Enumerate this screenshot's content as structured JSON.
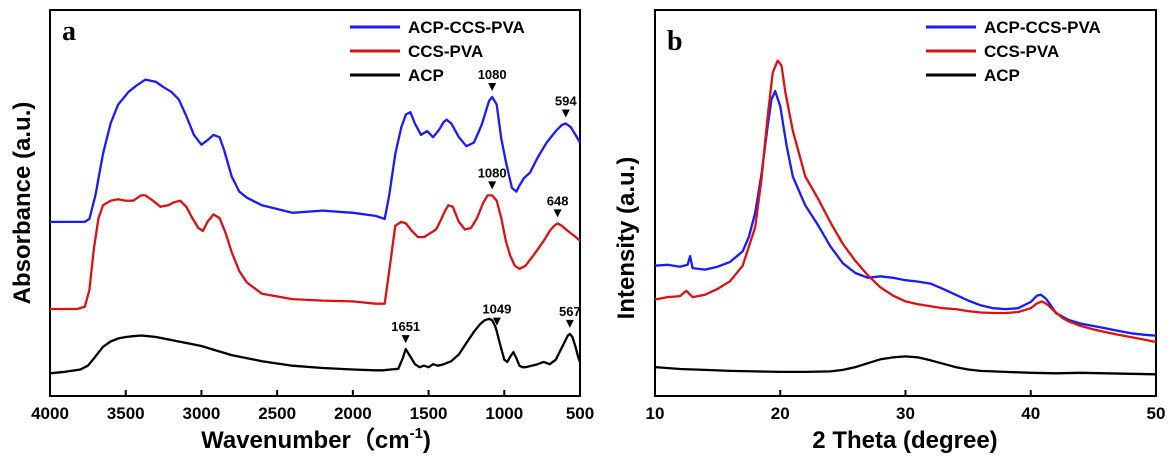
{
  "chart_data": [
    {
      "type": "line",
      "panel_label": "a",
      "xlabel": "Wavenumber",
      "xlabel_unit": "cm",
      "xlabel_exp": "-1",
      "xlabel_paren_open": "（",
      "xlabel_paren_close": ")",
      "ylabel": "Absorbance (a.u.)",
      "xlim": [
        4000,
        500
      ],
      "x_reversed": true,
      "xticks": [
        "4000",
        "3500",
        "3000",
        "2500",
        "2000",
        "1500",
        "1000",
        "500"
      ],
      "y_ticks_shown": false,
      "legend_position": "top-right",
      "series": [
        {
          "name": "ACP-CCS-PVA",
          "color": "#1a1aff",
          "x": [
            4000,
            3820,
            3770,
            3740,
            3700,
            3650,
            3600,
            3550,
            3480,
            3430,
            3370,
            3300,
            3250,
            3200,
            3150,
            3100,
            3050,
            3000,
            2960,
            2920,
            2880,
            2850,
            2800,
            2750,
            2700,
            2600,
            2400,
            2200,
            2000,
            1850,
            1790,
            1760,
            1720,
            1680,
            1650,
            1620,
            1590,
            1550,
            1510,
            1470,
            1430,
            1400,
            1380,
            1350,
            1300,
            1250,
            1200,
            1150,
            1100,
            1080,
            1050,
            1020,
            990,
            950,
            920,
            900,
            870,
            830,
            780,
            720,
            660,
            620,
            594,
            560,
            530,
            500
          ],
          "y": [
            2.0,
            2.0,
            2.0,
            2.04,
            2.35,
            2.9,
            3.3,
            3.55,
            3.72,
            3.8,
            3.88,
            3.85,
            3.78,
            3.72,
            3.62,
            3.4,
            3.15,
            3.02,
            3.08,
            3.15,
            3.12,
            2.95,
            2.6,
            2.4,
            2.32,
            2.22,
            2.12,
            2.15,
            2.12,
            2.08,
            2.04,
            2.35,
            2.9,
            3.25,
            3.42,
            3.45,
            3.3,
            3.15,
            3.2,
            3.12,
            3.22,
            3.32,
            3.35,
            3.3,
            3.12,
            3.0,
            3.05,
            3.28,
            3.6,
            3.65,
            3.55,
            3.1,
            2.8,
            2.45,
            2.4,
            2.48,
            2.58,
            2.65,
            2.85,
            3.05,
            3.2,
            3.28,
            3.3,
            3.25,
            3.15,
            3.05
          ]
        },
        {
          "name": "CCS-PVA",
          "color": "#dd1111",
          "x": [
            4000,
            3820,
            3770,
            3740,
            3710,
            3680,
            3650,
            3600,
            3550,
            3500,
            3450,
            3400,
            3370,
            3320,
            3270,
            3220,
            3180,
            3140,
            3100,
            3060,
            3020,
            2990,
            2960,
            2920,
            2880,
            2840,
            2800,
            2750,
            2700,
            2600,
            2400,
            2200,
            2000,
            1850,
            1790,
            1760,
            1720,
            1680,
            1650,
            1610,
            1570,
            1530,
            1490,
            1450,
            1420,
            1390,
            1370,
            1340,
            1300,
            1260,
            1220,
            1180,
            1140,
            1110,
            1080,
            1050,
            1020,
            990,
            960,
            930,
            900,
            860,
            800,
            740,
            700,
            670,
            648,
            620,
            580,
            540,
            500
          ],
          "y": [
            0.85,
            0.85,
            0.88,
            1.1,
            1.65,
            2.05,
            2.22,
            2.28,
            2.3,
            2.28,
            2.28,
            2.35,
            2.35,
            2.28,
            2.2,
            2.22,
            2.26,
            2.28,
            2.2,
            2.05,
            1.92,
            1.88,
            2.0,
            2.1,
            2.05,
            1.85,
            1.6,
            1.35,
            1.2,
            1.05,
            0.98,
            0.96,
            0.95,
            0.92,
            0.92,
            1.35,
            1.95,
            2.0,
            1.98,
            1.88,
            1.8,
            1.8,
            1.85,
            1.9,
            2.02,
            2.15,
            2.22,
            2.2,
            2.0,
            1.9,
            1.92,
            2.05,
            2.25,
            2.35,
            2.35,
            2.28,
            2.05,
            1.75,
            1.55,
            1.42,
            1.38,
            1.42,
            1.58,
            1.75,
            1.88,
            1.95,
            1.98,
            1.95,
            1.88,
            1.82,
            1.75
          ]
        },
        {
          "name": "ACP",
          "color": "#000000",
          "x": [
            4000,
            3900,
            3800,
            3750,
            3700,
            3650,
            3600,
            3550,
            3500,
            3450,
            3400,
            3350,
            3300,
            3250,
            3200,
            3150,
            3100,
            3000,
            2900,
            2800,
            2600,
            2400,
            2200,
            2000,
            1850,
            1800,
            1750,
            1700,
            1670,
            1651,
            1620,
            1590,
            1560,
            1530,
            1500,
            1470,
            1440,
            1400,
            1350,
            1300,
            1250,
            1200,
            1160,
            1130,
            1100,
            1080,
            1060,
            1049,
            1030,
            1000,
            980,
            960,
            940,
            920,
            900,
            880,
            860,
            820,
            780,
            740,
            700,
            660,
            630,
            600,
            580,
            567,
            550,
            530,
            510,
            500
          ],
          "y": [
            0.0,
            0.02,
            0.05,
            0.1,
            0.22,
            0.35,
            0.42,
            0.46,
            0.48,
            0.49,
            0.5,
            0.49,
            0.48,
            0.46,
            0.44,
            0.42,
            0.4,
            0.36,
            0.3,
            0.24,
            0.16,
            0.1,
            0.07,
            0.05,
            0.04,
            0.04,
            0.05,
            0.06,
            0.2,
            0.32,
            0.22,
            0.12,
            0.08,
            0.1,
            0.08,
            0.12,
            0.1,
            0.12,
            0.16,
            0.25,
            0.4,
            0.55,
            0.65,
            0.7,
            0.72,
            0.7,
            0.62,
            0.55,
            0.4,
            0.18,
            0.15,
            0.22,
            0.28,
            0.2,
            0.1,
            0.08,
            0.08,
            0.1,
            0.12,
            0.15,
            0.12,
            0.18,
            0.3,
            0.42,
            0.5,
            0.52,
            0.48,
            0.35,
            0.2,
            0.15
          ]
        }
      ],
      "annotations": [
        {
          "text": "1080",
          "x": 1080,
          "y": 3.65,
          "series": "ACP-CCS-PVA"
        },
        {
          "text": "594",
          "x": 594,
          "y": 3.3,
          "series": "ACP-CCS-PVA"
        },
        {
          "text": "1080",
          "x": 1080,
          "y": 2.35,
          "series": "CCS-PVA"
        },
        {
          "text": "648",
          "x": 648,
          "y": 1.98,
          "series": "CCS-PVA"
        },
        {
          "text": "1651",
          "x": 1651,
          "y": 0.32,
          "series": "ACP"
        },
        {
          "text": "1049",
          "x": 1049,
          "y": 0.55,
          "series": "ACP"
        },
        {
          "text": "567",
          "x": 567,
          "y": 0.52,
          "series": "ACP"
        }
      ]
    },
    {
      "type": "line",
      "panel_label": "b",
      "xlabel": "2 Theta (degree)",
      "ylabel": "Intensity (a.u.)",
      "xlim": [
        10,
        50
      ],
      "xticks": [
        "10",
        "20",
        "30",
        "40",
        "50"
      ],
      "y_ticks_shown": false,
      "legend_position": "top-right",
      "series": [
        {
          "name": "ACP-CCS-PVA",
          "color": "#1a1aff",
          "x": [
            10,
            11,
            12,
            12.6,
            12.8,
            13,
            14,
            15,
            16,
            17,
            17.5,
            18,
            18.5,
            19,
            19.3,
            19.6,
            20,
            20.5,
            21,
            22,
            23,
            24,
            25,
            26,
            27,
            28,
            29,
            30,
            31,
            32,
            33,
            34,
            35,
            36,
            37,
            38,
            39,
            40,
            40.5,
            40.8,
            41.2,
            41.6,
            42,
            43,
            44,
            45,
            46,
            47,
            48,
            49,
            50
          ],
          "y": [
            1.7,
            1.72,
            1.68,
            1.72,
            1.9,
            1.65,
            1.62,
            1.68,
            1.78,
            2.0,
            2.3,
            2.8,
            3.6,
            4.6,
            5.15,
            5.32,
            5.0,
            4.2,
            3.55,
            2.95,
            2.55,
            2.1,
            1.75,
            1.55,
            1.45,
            1.48,
            1.45,
            1.4,
            1.37,
            1.33,
            1.22,
            1.1,
            0.98,
            0.88,
            0.82,
            0.8,
            0.82,
            0.95,
            1.08,
            1.1,
            1.02,
            0.88,
            0.72,
            0.58,
            0.5,
            0.45,
            0.4,
            0.35,
            0.3,
            0.27,
            0.25
          ]
        },
        {
          "name": "CCS-PVA",
          "color": "#dd1111",
          "x": [
            10,
            11,
            12,
            12.5,
            13,
            14,
            15,
            16,
            17,
            18,
            18.5,
            19,
            19.4,
            19.8,
            20.1,
            20.4,
            21,
            22,
            23,
            24,
            25,
            26,
            27,
            28,
            29,
            30,
            31,
            32,
            33,
            34,
            35,
            36,
            37,
            38,
            39,
            40,
            40.5,
            40.9,
            41.3,
            41.8,
            42.5,
            43,
            44,
            45,
            46,
            47,
            48,
            49,
            50
          ],
          "y": [
            1.0,
            1.05,
            1.07,
            1.18,
            1.05,
            1.1,
            1.22,
            1.38,
            1.7,
            2.5,
            3.5,
            4.8,
            5.7,
            5.95,
            5.85,
            5.3,
            4.5,
            3.55,
            3.1,
            2.6,
            2.15,
            1.8,
            1.5,
            1.25,
            1.08,
            0.96,
            0.9,
            0.86,
            0.82,
            0.8,
            0.76,
            0.73,
            0.72,
            0.72,
            0.74,
            0.82,
            0.92,
            0.96,
            0.9,
            0.78,
            0.62,
            0.55,
            0.45,
            0.38,
            0.32,
            0.27,
            0.22,
            0.17,
            0.12
          ]
        },
        {
          "name": "ACP",
          "color": "#000000",
          "x": [
            10,
            12,
            14,
            16,
            18,
            20,
            22,
            24,
            25,
            26,
            27,
            28,
            29,
            30,
            31,
            32,
            33,
            34,
            35,
            36,
            38,
            40,
            42,
            44,
            46,
            48,
            50
          ],
          "y": [
            -0.4,
            -0.44,
            -0.46,
            -0.48,
            -0.49,
            -0.5,
            -0.5,
            -0.49,
            -0.46,
            -0.4,
            -0.32,
            -0.24,
            -0.2,
            -0.18,
            -0.2,
            -0.26,
            -0.33,
            -0.4,
            -0.45,
            -0.48,
            -0.5,
            -0.52,
            -0.53,
            -0.52,
            -0.53,
            -0.54,
            -0.55
          ]
        }
      ]
    }
  ]
}
